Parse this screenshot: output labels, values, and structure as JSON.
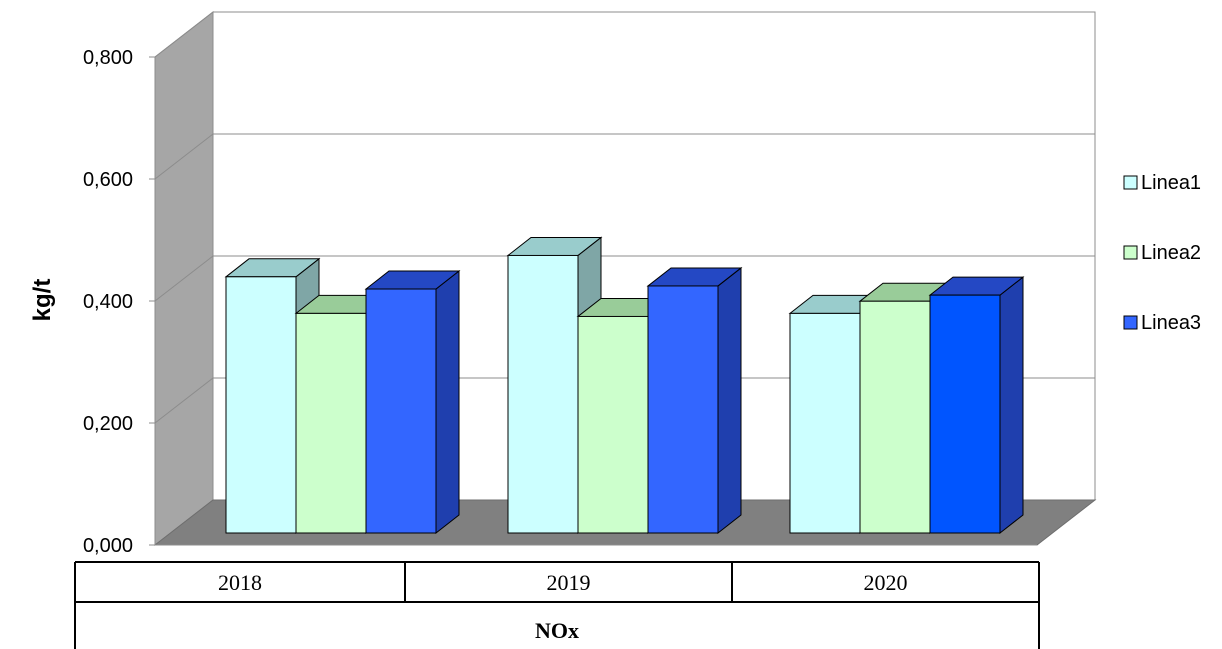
{
  "chart_data": {
    "type": "bar",
    "title": "",
    "xlabel": "",
    "ylabel": "kg/t",
    "categories": [
      "2018",
      "2019",
      "2020"
    ],
    "group_label": "NOx",
    "ylim": [
      0,
      0.8
    ],
    "yticks": [
      0.0,
      0.2,
      0.4,
      0.6,
      0.8
    ],
    "ytick_labels": [
      "0,000",
      "0,200",
      "0,400",
      "0,600",
      "0,800"
    ],
    "grid": true,
    "legend_position": "right",
    "series": [
      {
        "name": "Linea1",
        "values": [
          0.42,
          0.455,
          0.36
        ],
        "color": "#ccffff",
        "top_color": "#99cccc",
        "side_color": "#7fa6a6"
      },
      {
        "name": "Linea2",
        "values": [
          0.36,
          0.355,
          0.38
        ],
        "color": "#ccffcc",
        "top_color": "#99cc99",
        "side_color": "#85b285"
      },
      {
        "name": "Linea3",
        "values": [
          0.4,
          0.405,
          0.39
        ],
        "color": "#3366ff",
        "top_color": "#2448c4",
        "side_color": "#1f3fae"
      }
    ],
    "series_colors_per_category": [
      [
        "#ccffff",
        "#ccffcc",
        "#3366ff"
      ],
      [
        "#ccffff",
        "#ccffcc",
        "#3366ff"
      ],
      [
        "#ccffff",
        "#ccffcc",
        "#0055ff"
      ]
    ]
  }
}
